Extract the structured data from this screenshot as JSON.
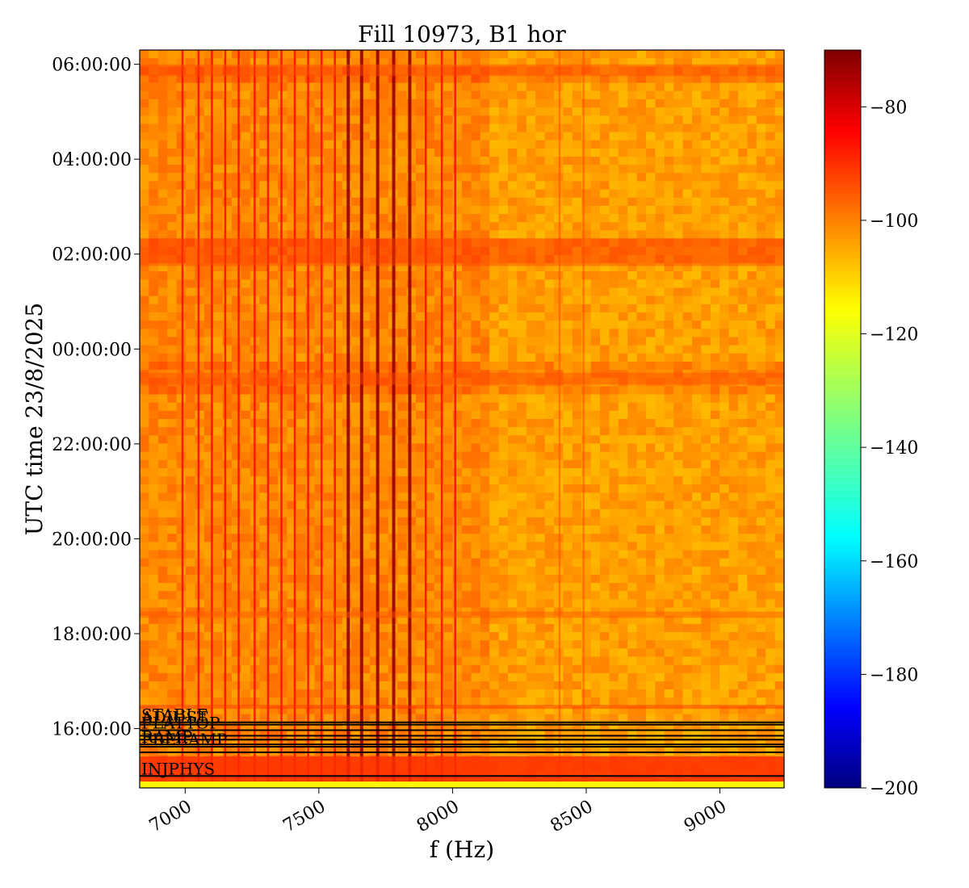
{
  "chart_data": {
    "type": "heatmap",
    "title": "Fill 10973, B1 hor",
    "xlabel": "f (Hz)",
    "ylabel": "UTC time 23/8/2025",
    "colormap": "jet",
    "xlim": [
      6830,
      9240
    ],
    "x_ticks": [
      {
        "value": 7000,
        "label": "7000"
      },
      {
        "value": 7500,
        "label": "7500"
      },
      {
        "value": 8000,
        "label": "8000"
      },
      {
        "value": 8500,
        "label": "8500"
      },
      {
        "value": 9000,
        "label": "9000"
      }
    ],
    "y_ticks": [
      {
        "value": 960,
        "label": "16:00:00"
      },
      {
        "value": 1080,
        "label": "18:00:00"
      },
      {
        "value": 1200,
        "label": "20:00:00"
      },
      {
        "value": 1320,
        "label": "22:00:00"
      },
      {
        "value": 1440,
        "label": "00:00:00"
      },
      {
        "value": 1560,
        "label": "02:00:00"
      },
      {
        "value": 1680,
        "label": "04:00:00"
      },
      {
        "value": 1800,
        "label": "06:00:00"
      }
    ],
    "ylim_minutes_of_day": [
      885,
      1818
    ],
    "colorbar": {
      "min": -200,
      "max": -70,
      "ticks": [
        {
          "value": -80,
          "label": "−80"
        },
        {
          "value": -100,
          "label": "−100"
        },
        {
          "value": -120,
          "label": "−120"
        },
        {
          "value": -140,
          "label": "−140"
        },
        {
          "value": -160,
          "label": "−160"
        },
        {
          "value": -180,
          "label": "−180"
        },
        {
          "value": -200,
          "label": "−200"
        }
      ]
    },
    "background_level": -105,
    "strong_lines_hz": [
      7610,
      7660,
      7720,
      7780,
      7840
    ],
    "line_frequencies_hz": [
      6990,
      7050,
      7100,
      7150,
      7200,
      7260,
      7310,
      7360,
      7410,
      7460,
      7510,
      7560,
      7610,
      7660,
      7720,
      7780,
      7840,
      7900,
      7960,
      8010,
      8400,
      8490
    ],
    "beam_mode_annotations": [
      {
        "label": "STABLE",
        "time_minutes": 968
      },
      {
        "label": "ADJUST",
        "time_minutes": 965
      },
      {
        "label": "FLATTOP",
        "time_minutes": 958
      },
      {
        "label": "RAMP",
        "time_minutes": 940
      },
      {
        "label": "PRERAMP",
        "time_minutes": 937
      },
      {
        "label": "INJPHYS",
        "time_minutes": 900
      }
    ],
    "grid": false,
    "legend": "none"
  }
}
